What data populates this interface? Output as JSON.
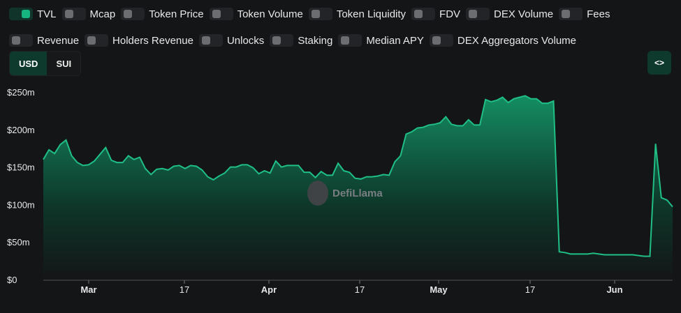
{
  "legend": [
    {
      "label": "TVL",
      "on": true
    },
    {
      "label": "Mcap",
      "on": false
    },
    {
      "label": "Token Price",
      "on": false
    },
    {
      "label": "Token Volume",
      "on": false
    },
    {
      "label": "Token Liquidity",
      "on": false
    },
    {
      "label": "FDV",
      "on": false
    },
    {
      "label": "DEX Volume",
      "on": false
    },
    {
      "label": "Fees",
      "on": false
    },
    {
      "label": "Revenue",
      "on": false
    },
    {
      "label": "Holders Revenue",
      "on": false
    },
    {
      "label": "Unlocks",
      "on": false
    },
    {
      "label": "Staking",
      "on": false
    },
    {
      "label": "Median APY",
      "on": false
    },
    {
      "label": "DEX Aggregators Volume",
      "on": false
    }
  ],
  "currency": {
    "options": [
      "USD",
      "SUI"
    ],
    "selected": "USD"
  },
  "embed_label": "<>",
  "watermark": "DefiLlama",
  "colors": {
    "line": "#1fbf86",
    "accent": "#16b57f",
    "background": "#141517"
  },
  "chart_data": {
    "type": "area",
    "series": [
      {
        "name": "TVL",
        "values": [
          160,
          173,
          168,
          180,
          186,
          165,
          156,
          152,
          153,
          158,
          167,
          176,
          159,
          156,
          156,
          165,
          160,
          163,
          148,
          140,
          147,
          148,
          146,
          151,
          152,
          148,
          152,
          151,
          146,
          137,
          133,
          138,
          142,
          150,
          150,
          153,
          153,
          149,
          141,
          145,
          142,
          158,
          150,
          152,
          152,
          152,
          143,
          143,
          136,
          144,
          139,
          139,
          155,
          145,
          143,
          135,
          134,
          137,
          137,
          138,
          140,
          139,
          157,
          165,
          194,
          197,
          202,
          203,
          206,
          207,
          209,
          217,
          207,
          205,
          205,
          213,
          206,
          206,
          240,
          237,
          239,
          243,
          236,
          241,
          243,
          245,
          241,
          241,
          235,
          235,
          238,
          37,
          36,
          34,
          34,
          34,
          34,
          35,
          34,
          33,
          33,
          33,
          33,
          33,
          33,
          32,
          31,
          31,
          181,
          109,
          106,
          97
        ]
      }
    ],
    "unit": "$m",
    "ylim": [
      0,
      250
    ],
    "yticks": [
      "$0",
      "$50m",
      "$100m",
      "$150m",
      "$200m",
      "$250m"
    ],
    "xticks": [
      "Mar",
      "17",
      "Apr",
      "17",
      "May",
      "17",
      "Jun"
    ],
    "grid": false
  }
}
